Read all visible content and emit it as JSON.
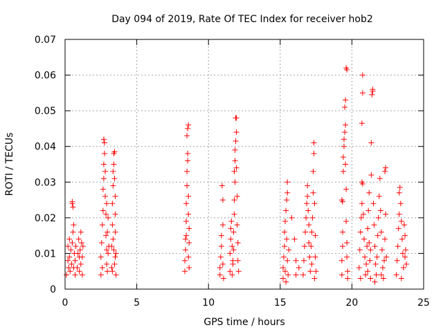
{
  "chart_data": {
    "type": "scatter",
    "title": "Day 094 of 2019, Rate Of TEC Index for receiver hob2",
    "xlabel": "GPS time / hours",
    "ylabel": "ROTI / TECUs",
    "xlim": [
      0,
      25
    ],
    "ylim": [
      0,
      0.07
    ],
    "xticks": [
      0,
      5,
      10,
      15,
      20,
      25
    ],
    "yticks": [
      0,
      0.01,
      0.02,
      0.03,
      0.04,
      0.05,
      0.06,
      0.07
    ],
    "xtick_labels": [
      "0",
      "5",
      "10",
      "15",
      "20",
      "25"
    ],
    "ytick_labels": [
      "0",
      "0.01",
      "0.02",
      "0.03",
      "0.04",
      "0.05",
      "0.06",
      "0.07"
    ],
    "grid": true,
    "marker": "+",
    "series_color": "#ff0000",
    "series": [
      {
        "name": "ROTI",
        "points": [
          [
            0.1,
            0.004
          ],
          [
            0.2,
            0.008
          ],
          [
            0.2,
            0.012
          ],
          [
            0.25,
            0.006
          ],
          [
            0.3,
            0.009
          ],
          [
            0.3,
            0.014
          ],
          [
            0.35,
            0.005
          ],
          [
            0.4,
            0.011
          ],
          [
            0.45,
            0.007
          ],
          [
            0.5,
            0.013
          ],
          [
            0.5,
            0.024
          ],
          [
            0.5,
            0.0245
          ],
          [
            0.55,
            0.023
          ],
          [
            0.55,
            0.016
          ],
          [
            0.6,
            0.006
          ],
          [
            0.6,
            0.018
          ],
          [
            0.65,
            0.01
          ],
          [
            0.7,
            0.004
          ],
          [
            0.7,
            0.008
          ],
          [
            0.75,
            0.012
          ],
          [
            0.85,
            0.006
          ],
          [
            0.9,
            0.01
          ],
          [
            0.95,
            0.014
          ],
          [
            1.0,
            0.005
          ],
          [
            1.0,
            0.009
          ],
          [
            1.05,
            0.011
          ],
          [
            1.1,
            0.016
          ],
          [
            1.1,
            0.007
          ],
          [
            1.15,
            0.013
          ],
          [
            1.2,
            0.004
          ],
          [
            1.2,
            0.009
          ],
          [
            1.25,
            0.012
          ],
          [
            2.5,
            0.004
          ],
          [
            2.5,
            0.009
          ],
          [
            2.55,
            0.013
          ],
          [
            2.6,
            0.006
          ],
          [
            2.6,
            0.018
          ],
          [
            2.65,
            0.022
          ],
          [
            2.65,
            0.028
          ],
          [
            2.7,
            0.031
          ],
          [
            2.7,
            0.035
          ],
          [
            2.75,
            0.038
          ],
          [
            2.7,
            0.042
          ],
          [
            2.75,
            0.041
          ],
          [
            2.8,
            0.033
          ],
          [
            2.8,
            0.026
          ],
          [
            2.85,
            0.021
          ],
          [
            2.85,
            0.015
          ],
          [
            2.9,
            0.011
          ],
          [
            2.9,
            0.007
          ],
          [
            2.95,
            0.005
          ],
          [
            3.0,
            0.01
          ],
          [
            2.95,
            0.016
          ],
          [
            3.0,
            0.02
          ],
          [
            3.05,
            0.012
          ],
          [
            2.9,
            0.024
          ],
          [
            3.25,
            0.006
          ],
          [
            3.25,
            0.012
          ],
          [
            3.3,
            0.018
          ],
          [
            3.3,
            0.024
          ],
          [
            3.35,
            0.029
          ],
          [
            3.35,
            0.033
          ],
          [
            3.4,
            0.038
          ],
          [
            3.45,
            0.0385
          ],
          [
            3.4,
            0.035
          ],
          [
            3.45,
            0.031
          ],
          [
            3.5,
            0.026
          ],
          [
            3.5,
            0.021
          ],
          [
            3.5,
            0.016
          ],
          [
            3.4,
            0.011
          ],
          [
            3.45,
            0.007
          ],
          [
            3.55,
            0.004
          ],
          [
            3.5,
            0.009
          ],
          [
            3.55,
            0.01
          ],
          [
            3.3,
            0.005
          ],
          [
            3.35,
            0.014
          ],
          [
            8.35,
            0.005
          ],
          [
            8.35,
            0.008
          ],
          [
            8.4,
            0.011
          ],
          [
            8.4,
            0.014
          ],
          [
            8.45,
            0.019
          ],
          [
            8.45,
            0.024
          ],
          [
            8.5,
            0.029
          ],
          [
            8.5,
            0.033
          ],
          [
            8.55,
            0.038
          ],
          [
            8.5,
            0.043
          ],
          [
            8.55,
            0.045
          ],
          [
            8.6,
            0.046
          ],
          [
            8.55,
            0.036
          ],
          [
            8.6,
            0.026
          ],
          [
            8.6,
            0.021
          ],
          [
            8.65,
            0.017
          ],
          [
            8.65,
            0.013
          ],
          [
            8.6,
            0.009
          ],
          [
            8.65,
            0.006
          ],
          [
            8.45,
            0.015
          ],
          [
            10.8,
            0.004
          ],
          [
            10.8,
            0.006
          ],
          [
            10.85,
            0.009
          ],
          [
            10.9,
            0.012
          ],
          [
            10.9,
            0.015
          ],
          [
            11.0,
            0.025
          ],
          [
            10.95,
            0.029
          ],
          [
            11.0,
            0.018
          ],
          [
            11.0,
            0.007
          ],
          [
            11.05,
            0.003
          ],
          [
            11.5,
            0.005
          ],
          [
            11.5,
            0.01
          ],
          [
            11.55,
            0.014
          ],
          [
            11.55,
            0.017
          ],
          [
            11.6,
            0.019
          ],
          [
            11.65,
            0.012
          ],
          [
            11.7,
            0.008
          ],
          [
            11.75,
            0.011
          ],
          [
            11.75,
            0.016
          ],
          [
            11.8,
            0.021
          ],
          [
            11.8,
            0.025
          ],
          [
            11.85,
            0.03
          ],
          [
            11.8,
            0.033
          ],
          [
            11.85,
            0.036
          ],
          [
            11.85,
            0.039
          ],
          [
            11.9,
            0.0415
          ],
          [
            11.9,
            0.048
          ],
          [
            11.95,
            0.048
          ],
          [
            11.95,
            0.044
          ],
          [
            11.95,
            0.034
          ],
          [
            12.0,
            0.026
          ],
          [
            12.0,
            0.018
          ],
          [
            12.05,
            0.013
          ],
          [
            12.05,
            0.008
          ],
          [
            12.1,
            0.005
          ],
          [
            11.65,
            0.004
          ],
          [
            11.7,
            0.007
          ],
          [
            15.2,
            0.003
          ],
          [
            15.2,
            0.006
          ],
          [
            15.25,
            0.009
          ],
          [
            15.3,
            0.012
          ],
          [
            15.3,
            0.016
          ],
          [
            15.35,
            0.019
          ],
          [
            15.4,
            0.022
          ],
          [
            15.45,
            0.025
          ],
          [
            15.5,
            0.03
          ],
          [
            15.5,
            0.027
          ],
          [
            15.45,
            0.014
          ],
          [
            15.5,
            0.008
          ],
          [
            15.55,
            0.004
          ],
          [
            15.6,
            0.011
          ],
          [
            15.4,
            0.002
          ],
          [
            15.35,
            0.005
          ],
          [
            15.8,
            0.02
          ],
          [
            16.0,
            0.014
          ],
          [
            16.1,
            0.004
          ],
          [
            16.1,
            0.008
          ],
          [
            16.3,
            0.006
          ],
          [
            16.6,
            0.004
          ],
          [
            16.65,
            0.008
          ],
          [
            16.7,
            0.012
          ],
          [
            16.75,
            0.016
          ],
          [
            16.8,
            0.02
          ],
          [
            16.85,
            0.024
          ],
          [
            16.9,
            0.029
          ],
          [
            16.9,
            0.026
          ],
          [
            16.95,
            0.022
          ],
          [
            17.0,
            0.018
          ],
          [
            17.0,
            0.013
          ],
          [
            17.05,
            0.009
          ],
          [
            17.1,
            0.005
          ],
          [
            17.15,
            0.012
          ],
          [
            17.2,
            0.016
          ],
          [
            17.25,
            0.02
          ],
          [
            17.3,
            0.027
          ],
          [
            17.3,
            0.033
          ],
          [
            17.35,
            0.038
          ],
          [
            17.35,
            0.041
          ],
          [
            17.4,
            0.024
          ],
          [
            17.45,
            0.015
          ],
          [
            17.45,
            0.009
          ],
          [
            17.5,
            0.005
          ],
          [
            17.4,
            0.003
          ],
          [
            17.2,
            0.007
          ],
          [
            19.3,
            0.004
          ],
          [
            19.3,
            0.008
          ],
          [
            19.35,
            0.012
          ],
          [
            19.35,
            0.016
          ],
          [
            19.35,
            0.0245
          ],
          [
            19.3,
            0.025
          ],
          [
            19.4,
            0.033
          ],
          [
            19.4,
            0.037
          ],
          [
            19.45,
            0.04
          ],
          [
            19.45,
            0.042
          ],
          [
            19.5,
            0.044
          ],
          [
            19.55,
            0.046
          ],
          [
            19.5,
            0.051
          ],
          [
            19.55,
            0.053
          ],
          [
            19.6,
            0.062
          ],
          [
            19.65,
            0.0615
          ],
          [
            19.55,
            0.035
          ],
          [
            19.6,
            0.028
          ],
          [
            19.6,
            0.019
          ],
          [
            19.65,
            0.013
          ],
          [
            19.65,
            0.009
          ],
          [
            19.7,
            0.005
          ],
          [
            19.7,
            0.003
          ],
          [
            20.5,
            0.006
          ],
          [
            20.55,
            0.011
          ],
          [
            20.6,
            0.016
          ],
          [
            20.65,
            0.02
          ],
          [
            20.7,
            0.024
          ],
          [
            20.7,
            0.03
          ],
          [
            20.75,
            0.0295
          ],
          [
            20.7,
            0.0465
          ],
          [
            20.75,
            0.055
          ],
          [
            20.75,
            0.06
          ],
          [
            20.8,
            0.021
          ],
          [
            20.85,
            0.014
          ],
          [
            20.9,
            0.009
          ],
          [
            20.95,
            0.004
          ],
          [
            21.0,
            0.007
          ],
          [
            21.05,
            0.012
          ],
          [
            21.1,
            0.017
          ],
          [
            21.15,
            0.022
          ],
          [
            21.2,
            0.027
          ],
          [
            21.2,
            0.013
          ],
          [
            21.25,
            0.008
          ],
          [
            21.3,
            0.003
          ],
          [
            21.3,
            0.011
          ],
          [
            21.35,
            0.032
          ],
          [
            21.35,
            0.041
          ],
          [
            21.4,
            0.0545
          ],
          [
            21.45,
            0.0555
          ],
          [
            21.45,
            0.056
          ],
          [
            21.5,
            0.024
          ],
          [
            21.55,
            0.018
          ],
          [
            21.6,
            0.012
          ],
          [
            21.65,
            0.007
          ],
          [
            21.7,
            0.004
          ],
          [
            21.75,
            0.009
          ],
          [
            21.8,
            0.015
          ],
          [
            21.85,
            0.02
          ],
          [
            21.9,
            0.026
          ],
          [
            21.95,
            0.031
          ],
          [
            22.0,
            0.022
          ],
          [
            22.05,
            0.016
          ],
          [
            22.1,
            0.011
          ],
          [
            22.15,
            0.006
          ],
          [
            22.2,
            0.003
          ],
          [
            22.25,
            0.008
          ],
          [
            22.3,
            0.014
          ],
          [
            22.3,
            0.033
          ],
          [
            22.35,
            0.034
          ],
          [
            22.35,
            0.021
          ],
          [
            22.4,
            0.009
          ],
          [
            20.6,
            0.003
          ],
          [
            21.1,
            0.005
          ],
          [
            21.6,
            0.002
          ],
          [
            22.05,
            0.004
          ],
          [
            23.1,
            0.004
          ],
          [
            23.15,
            0.008
          ],
          [
            23.2,
            0.012
          ],
          [
            23.25,
            0.017
          ],
          [
            23.3,
            0.021
          ],
          [
            23.3,
            0.027
          ],
          [
            23.35,
            0.0285
          ],
          [
            23.4,
            0.024
          ],
          [
            23.45,
            0.019
          ],
          [
            23.5,
            0.014
          ],
          [
            23.55,
            0.01
          ],
          [
            23.6,
            0.006
          ],
          [
            23.65,
            0.018
          ],
          [
            23.7,
            0.015
          ],
          [
            23.75,
            0.011
          ],
          [
            23.8,
            0.007
          ],
          [
            23.45,
            0.003
          ],
          [
            23.7,
            0.009
          ]
        ]
      }
    ]
  }
}
